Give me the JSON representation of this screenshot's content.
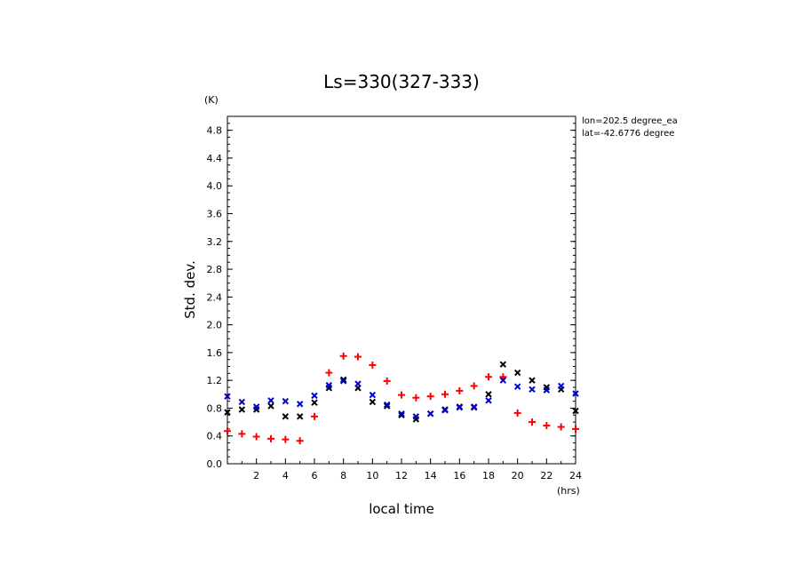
{
  "chart_data": {
    "type": "scatter",
    "title": "Ls=330(327-333)",
    "xlabel": "local time",
    "ylabel": "Std. dev.",
    "x_unit": "(hrs)",
    "y_unit": "(K)",
    "xlim": [
      0,
      24
    ],
    "ylim": [
      0,
      5.0
    ],
    "x_ticks": [
      2,
      4,
      6,
      8,
      10,
      12,
      14,
      16,
      18,
      20,
      22,
      24
    ],
    "y_ticks": [
      0.0,
      0.4,
      0.8,
      1.2,
      1.6,
      2.0,
      2.4,
      2.8,
      3.2,
      3.6,
      4.0,
      4.4,
      4.8
    ],
    "annotations": [
      "lon=202.5 degree_ea",
      "lat=-42.6776 degree"
    ],
    "series": [
      {
        "marker": "plus",
        "color": "#ff0000",
        "x": [
          0,
          1,
          2,
          3,
          4,
          5,
          6,
          7,
          8,
          9,
          10,
          11,
          12,
          13,
          14,
          15,
          16,
          17,
          18,
          19,
          20,
          21,
          22,
          23,
          24
        ],
        "y": [
          0.47,
          0.43,
          0.39,
          0.36,
          0.35,
          0.33,
          0.68,
          1.31,
          1.55,
          1.54,
          1.42,
          1.19,
          0.99,
          0.95,
          0.97,
          1.0,
          1.05,
          1.12,
          1.25,
          1.25,
          0.73,
          0.6,
          0.55,
          0.53,
          0.5
        ]
      },
      {
        "marker": "x",
        "color": "#000000",
        "x": [
          0,
          1,
          2,
          3,
          4,
          5,
          6,
          7,
          8,
          9,
          10,
          11,
          12,
          13,
          14,
          15,
          16,
          17,
          18,
          19,
          20,
          21,
          22,
          23,
          24
        ],
        "y": [
          0.74,
          0.78,
          0.78,
          0.83,
          0.68,
          0.68,
          0.88,
          1.09,
          1.21,
          1.09,
          0.89,
          0.83,
          0.7,
          0.64,
          0.72,
          0.78,
          0.82,
          0.81,
          1.0,
          1.43,
          1.31,
          1.2,
          1.1,
          1.07,
          0.76
        ]
      },
      {
        "marker": "x",
        "color": "#0000cc",
        "x": [
          0,
          1,
          2,
          3,
          4,
          5,
          6,
          7,
          8,
          9,
          10,
          11,
          12,
          13,
          14,
          15,
          16,
          17,
          18,
          19,
          20,
          21,
          22,
          23,
          24
        ],
        "y": [
          0.97,
          0.89,
          0.82,
          0.91,
          0.9,
          0.86,
          0.98,
          1.13,
          1.19,
          1.15,
          0.99,
          0.85,
          0.72,
          0.68,
          0.72,
          0.77,
          0.81,
          0.82,
          0.91,
          1.2,
          1.11,
          1.07,
          1.06,
          1.12,
          1.01
        ]
      }
    ]
  }
}
